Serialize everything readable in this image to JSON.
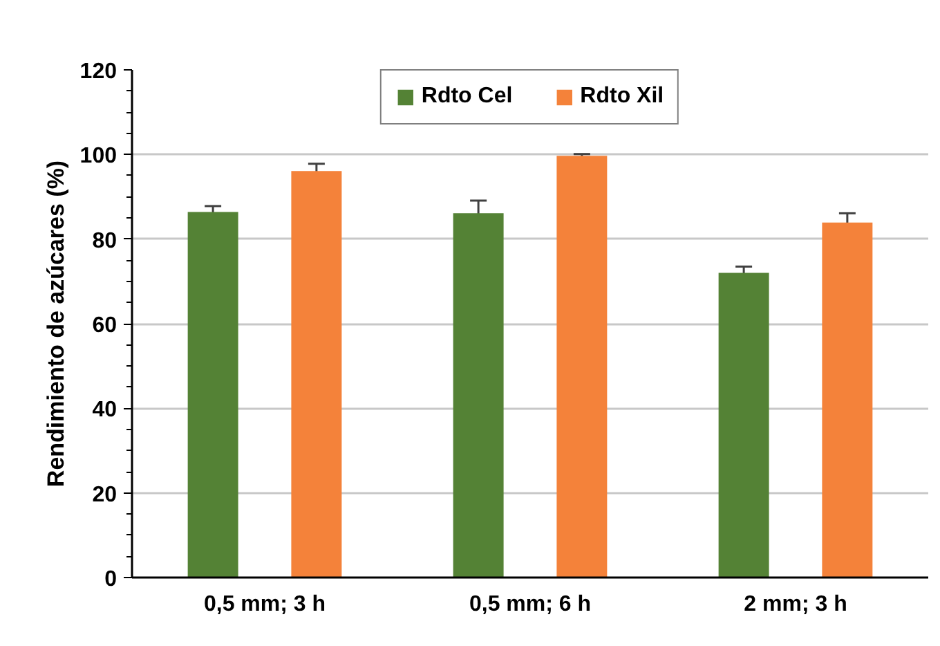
{
  "chart_data": {
    "type": "bar",
    "ylabel": "Rendimiento de azúcares (%)",
    "categories": [
      "0,5 mm; 3 h",
      "0,5 mm; 6 h",
      "2 mm; 3 h"
    ],
    "series": [
      {
        "name": "Rdto Cel",
        "color": "#548235",
        "values": [
          86.4,
          86.1,
          72.0
        ],
        "errors": [
          1.4,
          3.0,
          1.5
        ]
      },
      {
        "name": "Rdto Xil",
        "color": "#f4823a",
        "values": [
          96.1,
          99.7,
          83.9
        ],
        "errors": [
          1.7,
          0.4,
          2.2
        ]
      }
    ],
    "ylim": [
      0,
      120
    ],
    "yticks": [
      0,
      20,
      40,
      60,
      80,
      100,
      120
    ],
    "grid": "y",
    "legend": "top"
  }
}
